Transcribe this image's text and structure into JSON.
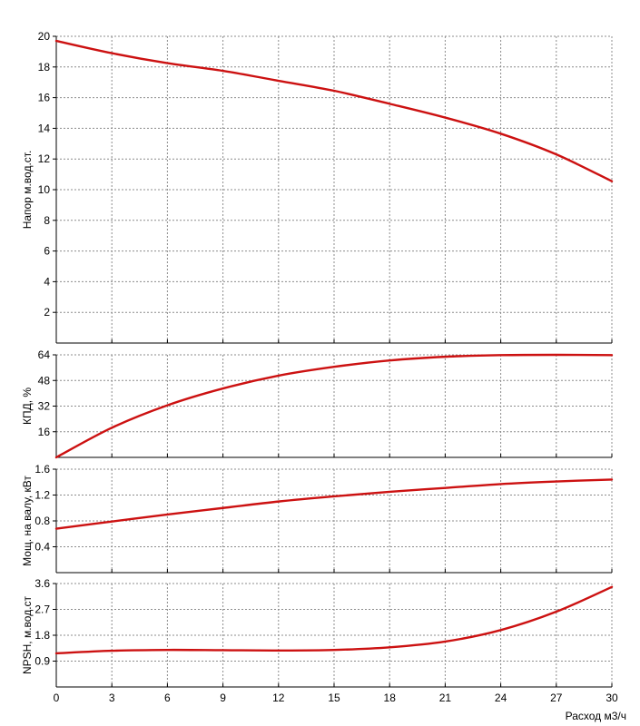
{
  "chart_data": [
    {
      "type": "line",
      "id": "head",
      "ylabel": "Напор м.вод.ст.",
      "xlabel": "",
      "xlim": [
        0,
        30
      ],
      "ylim": [
        0,
        20
      ],
      "xticks": [
        0,
        3,
        6,
        9,
        12,
        15,
        18,
        21,
        24,
        27,
        30
      ],
      "yticks": [
        2,
        4,
        6,
        8,
        10,
        12,
        14,
        16,
        18,
        20
      ],
      "color": "#cc1111",
      "series": [
        {
          "x": [
            0,
            3,
            6,
            9,
            12,
            15,
            18,
            21,
            24,
            27,
            30
          ],
          "y": [
            19.7,
            18.9,
            18.25,
            17.75,
            17.1,
            16.45,
            15.6,
            14.7,
            13.65,
            12.3,
            10.55
          ]
        }
      ]
    },
    {
      "type": "line",
      "id": "efficiency",
      "ylabel": "КПД, %",
      "xlabel": "",
      "xlim": [
        0,
        30
      ],
      "ylim": [
        0,
        64
      ],
      "xticks": [
        0,
        3,
        6,
        9,
        12,
        15,
        18,
        21,
        24,
        27,
        30
      ],
      "yticks": [
        16,
        32,
        48,
        64
      ],
      "color": "#cc1111",
      "series": [
        {
          "x": [
            0,
            3,
            6,
            9,
            12,
            15,
            18,
            21,
            24,
            27,
            30
          ],
          "y": [
            0,
            18.5,
            32.5,
            43,
            51,
            56.5,
            60.5,
            62.8,
            63.8,
            64,
            63.8
          ]
        }
      ]
    },
    {
      "type": "line",
      "id": "power",
      "ylabel": "Мощ. на валу, кВт",
      "xlabel": "",
      "xlim": [
        0,
        30
      ],
      "ylim": [
        0,
        1.6
      ],
      "xticks": [
        0,
        3,
        6,
        9,
        12,
        15,
        18,
        21,
        24,
        27,
        30
      ],
      "yticks": [
        0.4,
        0.8,
        1.2,
        1.6
      ],
      "color": "#cc1111",
      "series": [
        {
          "x": [
            0,
            3,
            6,
            9,
            12,
            15,
            18,
            21,
            24,
            27,
            30
          ],
          "y": [
            0.68,
            0.79,
            0.9,
            1.0,
            1.1,
            1.18,
            1.25,
            1.31,
            1.37,
            1.41,
            1.44
          ]
        }
      ]
    },
    {
      "type": "line",
      "id": "npsh",
      "ylabel": "NPSH, м.вод.ст",
      "xlabel": "Расход м3/ч",
      "xlim": [
        0,
        30
      ],
      "ylim": [
        0,
        3.6
      ],
      "xticks": [
        0,
        3,
        6,
        9,
        12,
        15,
        18,
        21,
        24,
        27,
        30
      ],
      "xticklabels": [
        "0",
        "3",
        "6",
        "9",
        "12",
        "15",
        "18",
        "21",
        "24",
        "27",
        "30"
      ],
      "yticks": [
        0.9,
        1.8,
        2.7,
        3.6
      ],
      "yticklabels": [
        "0.9",
        "1.8",
        "2.7",
        "3.6"
      ],
      "color": "#cc1111",
      "series": [
        {
          "x": [
            0,
            3,
            6,
            9,
            12,
            15,
            18,
            21,
            24,
            27,
            30
          ],
          "y": [
            1.17,
            1.26,
            1.29,
            1.28,
            1.27,
            1.29,
            1.38,
            1.58,
            1.98,
            2.62,
            3.48
          ]
        }
      ]
    }
  ]
}
